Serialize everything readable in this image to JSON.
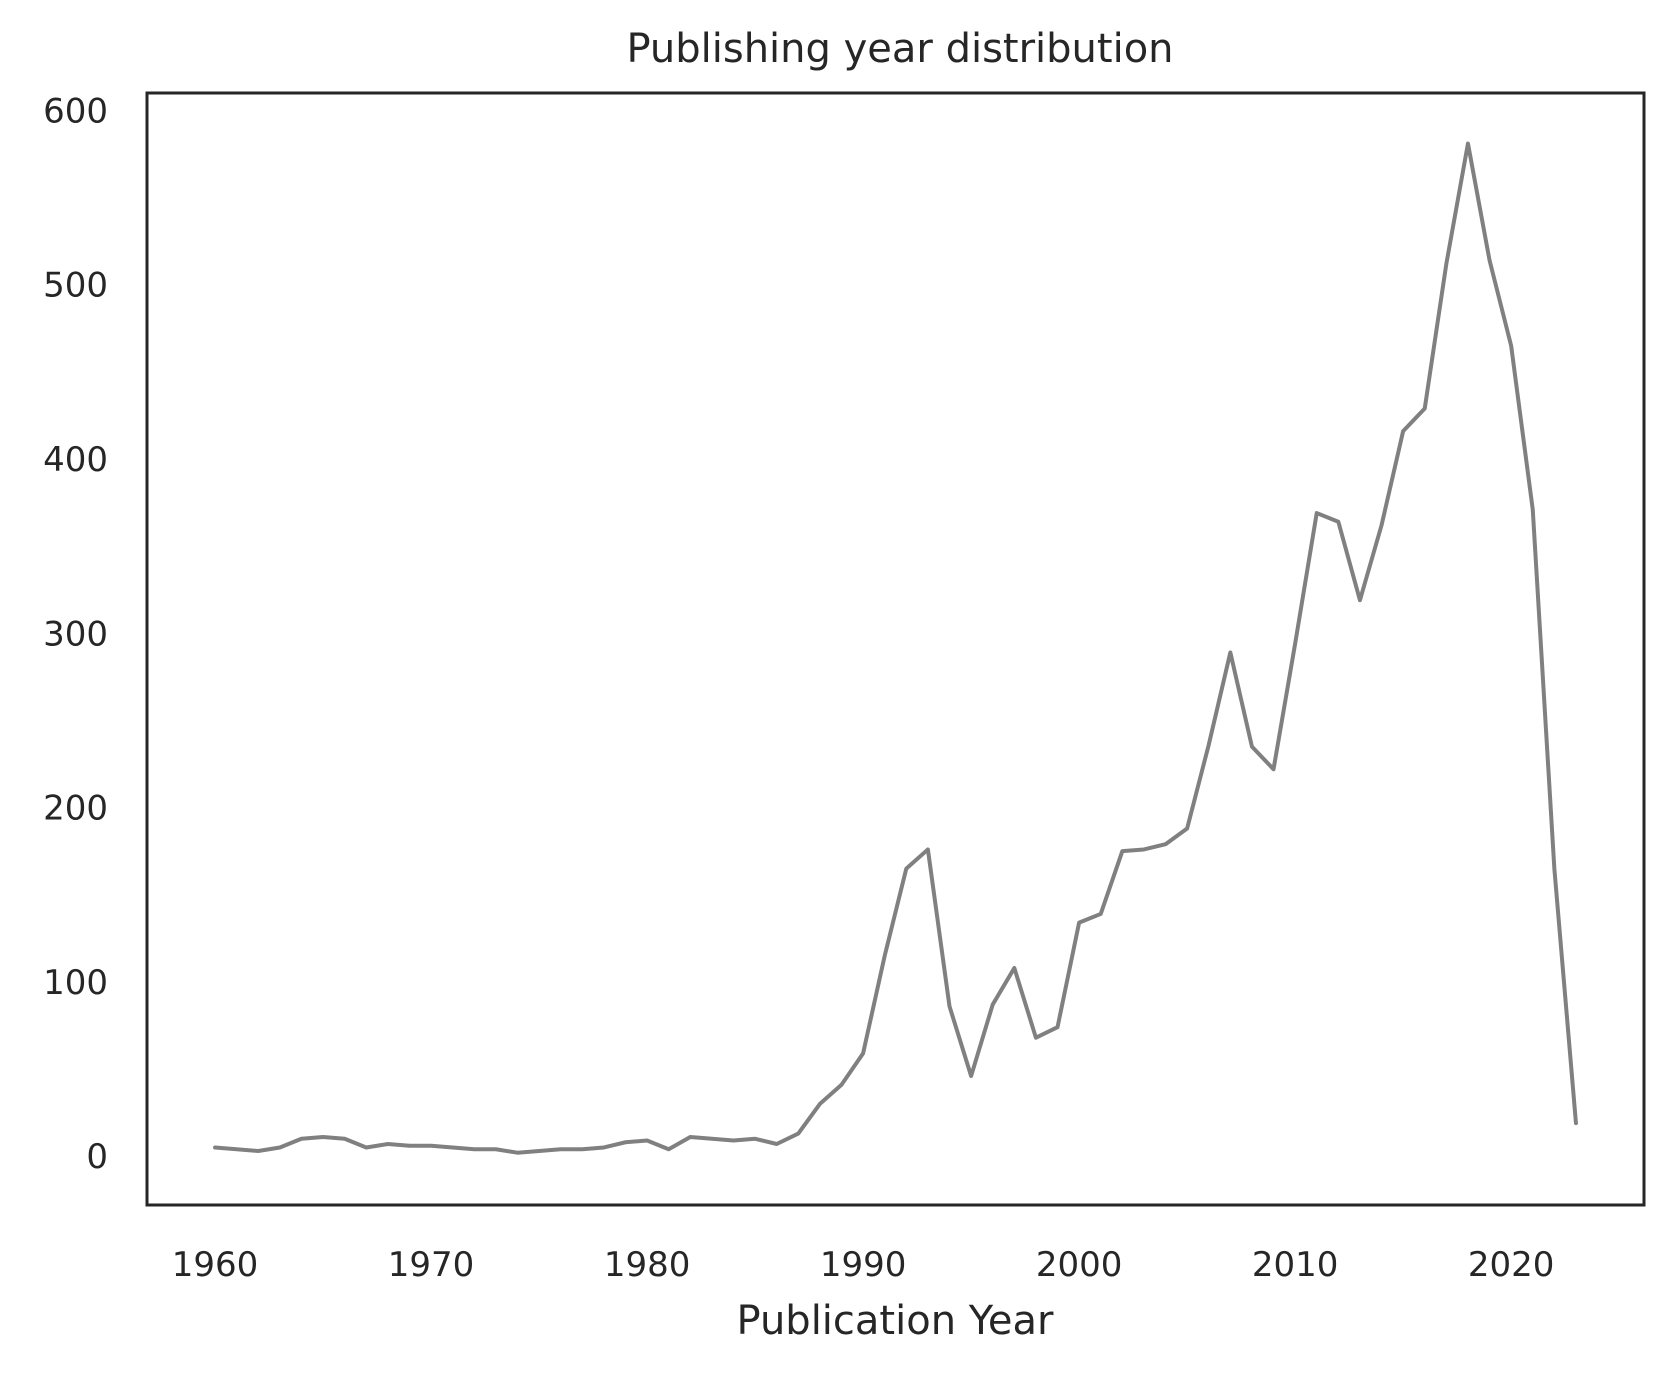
{
  "chart_data": {
    "type": "line",
    "title": "Publishing year distribution",
    "xlabel": "Publication Year",
    "ylabel": "",
    "xlim": [
      1956.85,
      2026.15
    ],
    "ylim": [
      -28,
      610
    ],
    "xticks": [
      1960,
      1970,
      1980,
      1990,
      2000,
      2010,
      2020
    ],
    "yticks": [
      0,
      100,
      200,
      300,
      400,
      500,
      600
    ],
    "grid": false,
    "legend": "none",
    "series": [
      {
        "color": "#808080",
        "x": [
          1960,
          1961,
          1962,
          1963,
          1964,
          1965,
          1966,
          1967,
          1968,
          1969,
          1970,
          1971,
          1972,
          1973,
          1974,
          1975,
          1976,
          1977,
          1978,
          1979,
          1980,
          1981,
          1982,
          1983,
          1984,
          1985,
          1986,
          1987,
          1988,
          1989,
          1990,
          1991,
          1992,
          1993,
          1994,
          1995,
          1996,
          1997,
          1998,
          1999,
          2000,
          2001,
          2002,
          2003,
          2004,
          2005,
          2006,
          2007,
          2008,
          2009,
          2010,
          2011,
          2012,
          2013,
          2014,
          2015,
          2016,
          2017,
          2018,
          2019,
          2020,
          2021,
          2022,
          2023
        ],
        "y": [
          5,
          4,
          3,
          5,
          10,
          11,
          10,
          5,
          7,
          6,
          6,
          5,
          4,
          4,
          2,
          3,
          4,
          4,
          5,
          8,
          9,
          4,
          11,
          10,
          9,
          10,
          7,
          13,
          30,
          41,
          59,
          115,
          165,
          176,
          86,
          46,
          87,
          108,
          68,
          74,
          134,
          139,
          175,
          176,
          179,
          188,
          236,
          289,
          235,
          222,
          294,
          369,
          364,
          319,
          362,
          416,
          429,
          512,
          581,
          514,
          465,
          371,
          165,
          19
        ]
      }
    ]
  }
}
